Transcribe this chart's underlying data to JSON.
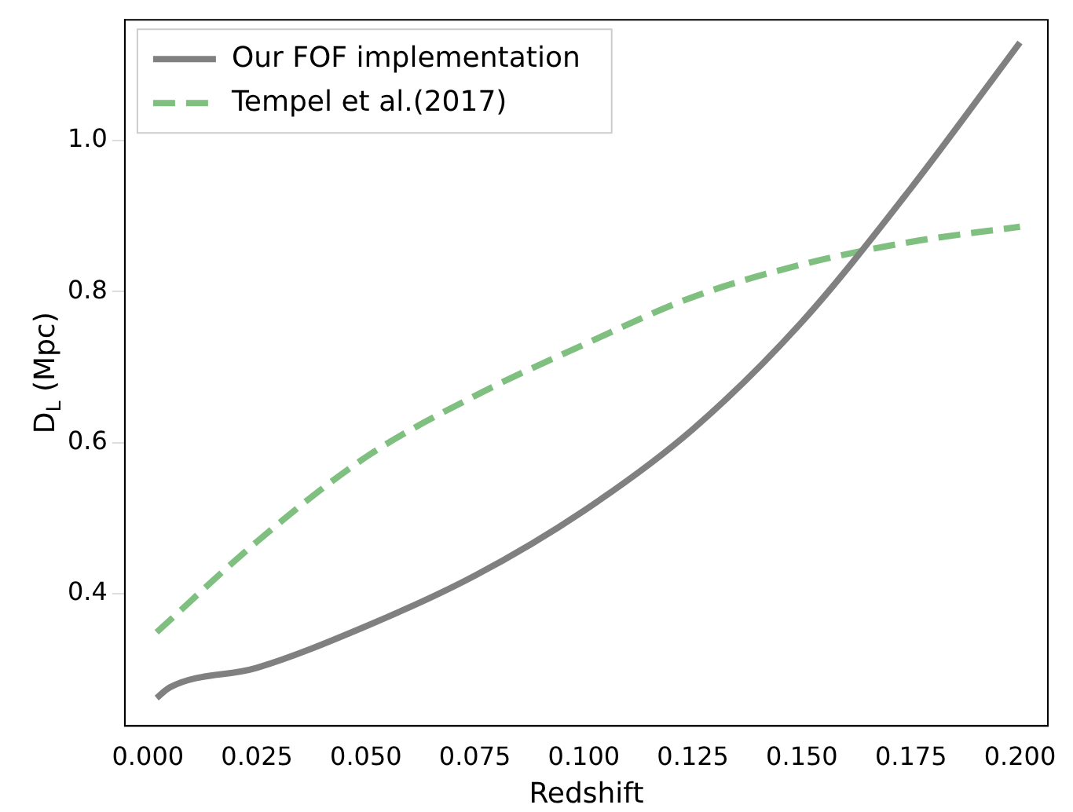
{
  "chart_data": {
    "type": "line",
    "xlabel": "Redshift",
    "ylabel": "D$_{L}$ (Mpc)",
    "xlim": [
      -0.0053,
      0.2064
    ],
    "xticks": [
      {
        "value": 0,
        "label": "0.000"
      },
      {
        "value": 0.025,
        "label": "0.025"
      },
      {
        "value": 0.05,
        "label": "0.050"
      },
      {
        "value": 0.075,
        "label": "0.075"
      },
      {
        "value": 0.1,
        "label": "0.100"
      },
      {
        "value": 0.125,
        "label": "0.125"
      },
      {
        "value": 0.15,
        "label": "0.150"
      },
      {
        "value": 0.175,
        "label": "0.175"
      },
      {
        "value": 0.2,
        "label": "0.200"
      }
    ],
    "ylim": [
      0.225,
      1.16
    ],
    "yticks": [
      0.4,
      0.6,
      0.8,
      {
        "value": 1.0,
        "label": "1.0"
      }
    ],
    "grid": false,
    "legend": "top left",
    "marker": "none",
    "series": [
      {
        "name": "Our FOF implementation",
        "color": "#808080",
        "line_style": "solid",
        "x": [
          0.002,
          0.005,
          0.025,
          0.05,
          0.075,
          0.1,
          0.125,
          0.15,
          0.175,
          0.2
        ],
        "values": [
          0.262,
          0.276,
          0.302,
          0.357,
          0.424,
          0.51,
          0.618,
          0.76,
          0.937,
          1.13
        ]
      },
      {
        "name": "Tempel et al.(2017)",
        "color": "#7fbf7f",
        "line_style": "dashed",
        "x": [
          0.002,
          0.025,
          0.05,
          0.075,
          0.1,
          0.125,
          0.15,
          0.175,
          0.2
        ],
        "values": [
          0.349,
          0.469,
          0.581,
          0.662,
          0.73,
          0.793,
          0.836,
          0.866,
          0.886
        ]
      }
    ]
  }
}
